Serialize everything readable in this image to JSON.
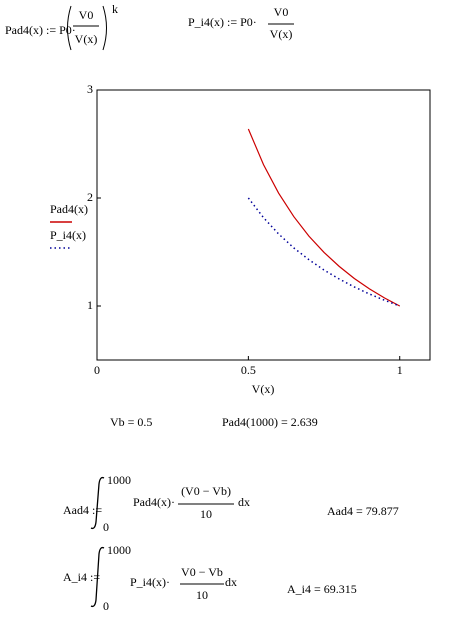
{
  "definitions": {
    "pad4": {
      "lhs": "Pad4(x) := P0·",
      "numerator": "V0",
      "denominator": "V(x)",
      "exponent": "k"
    },
    "p_i4": {
      "lhs": "P_i4(x) := P0·",
      "numerator": "V0",
      "denominator": "V(x)"
    }
  },
  "chart_data": {
    "type": "line",
    "xlabel": "V(x)",
    "x": [
      0.5,
      0.55,
      0.6,
      0.65,
      0.7,
      0.75,
      0.8,
      0.85,
      0.9,
      0.95,
      1
    ],
    "series": [
      {
        "name": "Pad4(x)",
        "color": "#cc0000",
        "style": "solid",
        "values": [
          2.639,
          2.309,
          2.045,
          1.828,
          1.647,
          1.496,
          1.367,
          1.255,
          1.159,
          1.074,
          1
        ]
      },
      {
        "name": "P_i4(x)",
        "color": "#000099",
        "style": "dotted",
        "values": [
          2,
          1.818,
          1.667,
          1.538,
          1.429,
          1.333,
          1.25,
          1.176,
          1.111,
          1.053,
          1
        ]
      }
    ],
    "xlim": [
      0,
      1.1
    ],
    "xticks": [
      0,
      0.5,
      1
    ],
    "ylim": [
      0.5,
      3
    ],
    "yticks": [
      1,
      2,
      3
    ]
  },
  "results": {
    "vb": "Vb = 0.5",
    "pad4_1000": "Pad4(1000) = 2.639"
  },
  "integrals": [
    {
      "lhs": "Aad4 :=",
      "upper": "1000",
      "lower": "0",
      "integrand": "Pad4(x)·",
      "numerator": "(V0 − Vb)",
      "denominator": "10",
      "dx": "dx",
      "result": "Aad4 = 79.877"
    },
    {
      "lhs": "A_i4 :=",
      "upper": "1000",
      "lower": "0",
      "integrand": "P_i4(x)·",
      "numerator": "V0 − Vb",
      "denominator": "10",
      "dx": "dx",
      "result": "A_i4 = 69.315"
    }
  ]
}
